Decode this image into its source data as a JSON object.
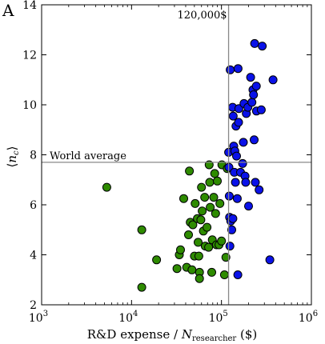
{
  "chart_data": {
    "type": "scatter",
    "panel_label": "A",
    "xlabel_main": "R&D expense /",
    "xlabel_symbol": "N",
    "xlabel_subscript": "researcher",
    "xlabel_unit": " ($)",
    "ylabel": "⟨n_c⟩",
    "ylabel_prefix": "⟨",
    "ylabel_symbol": "n",
    "ylabel_subscript": "c",
    "ylabel_suffix": "⟩",
    "x_scale": "log",
    "xlim": [
      1000,
      1000000
    ],
    "ylim": [
      2,
      14
    ],
    "x_ticks": [
      {
        "value": 1000,
        "base": "10",
        "exp": "3"
      },
      {
        "value": 10000,
        "base": "10",
        "exp": "4"
      },
      {
        "value": 100000,
        "base": "10",
        "exp": "5"
      },
      {
        "value": 1000000,
        "base": "10",
        "exp": "6"
      }
    ],
    "y_ticks": [
      2,
      4,
      6,
      8,
      10,
      12,
      14
    ],
    "grid": false,
    "reference_lines": [
      {
        "orientation": "vertical",
        "value": 120000,
        "label": "120,000$"
      },
      {
        "orientation": "horizontal",
        "value": 7.7,
        "label": "World average"
      }
    ],
    "series": [
      {
        "color": "#2e8b00",
        "points": [
          [
            5300,
            6.7
          ],
          [
            13000,
            2.7
          ],
          [
            13000,
            5.0
          ],
          [
            19000,
            3.8
          ],
          [
            32000,
            3.45
          ],
          [
            34000,
            4.0
          ],
          [
            35000,
            4.2
          ],
          [
            38000,
            6.25
          ],
          [
            41000,
            3.5
          ],
          [
            43000,
            4.8
          ],
          [
            44000,
            7.35
          ],
          [
            45000,
            5.3
          ],
          [
            47000,
            3.4
          ],
          [
            48000,
            5.2
          ],
          [
            50000,
            3.95
          ],
          [
            51000,
            6.05
          ],
          [
            54000,
            5.45
          ],
          [
            55000,
            4.5
          ],
          [
            56000,
            3.95
          ],
          [
            57000,
            3.3
          ],
          [
            57000,
            3.05
          ],
          [
            59000,
            5.4
          ],
          [
            60000,
            6.7
          ],
          [
            61000,
            5.75
          ],
          [
            63000,
            4.95
          ],
          [
            65000,
            6.3
          ],
          [
            66000,
            4.35
          ],
          [
            69000,
            5.1
          ],
          [
            72000,
            4.3
          ],
          [
            73000,
            7.6
          ],
          [
            74000,
            6.9
          ],
          [
            75000,
            5.9
          ],
          [
            78000,
            3.3
          ],
          [
            79000,
            4.6
          ],
          [
            82000,
            6.3
          ],
          [
            84000,
            7.25
          ],
          [
            86000,
            5.65
          ],
          [
            88000,
            4.4
          ],
          [
            90000,
            6.95
          ],
          [
            94000,
            4.4
          ],
          [
            96000,
            6.05
          ],
          [
            100000,
            4.55
          ],
          [
            101000,
            7.6
          ],
          [
            108000,
            3.2
          ],
          [
            112000,
            3.9
          ],
          [
            116000,
            7.45
          ]
        ]
      },
      {
        "color": "#0a12e8",
        "points": [
          [
            120000,
            8.1
          ],
          [
            121000,
            7.5
          ],
          [
            122000,
            6.35
          ],
          [
            123000,
            5.5
          ],
          [
            124000,
            4.35
          ],
          [
            125000,
            11.4
          ],
          [
            127000,
            5.35
          ],
          [
            130000,
            5.0
          ],
          [
            133000,
            9.9
          ],
          [
            134000,
            5.45
          ],
          [
            135000,
            9.55
          ],
          [
            137000,
            8.35
          ],
          [
            139000,
            7.3
          ],
          [
            141000,
            8.15
          ],
          [
            143000,
            6.9
          ],
          [
            145000,
            9.15
          ],
          [
            147000,
            7.95
          ],
          [
            150000,
            6.25
          ],
          [
            152000,
            3.2
          ],
          [
            153000,
            11.45
          ],
          [
            155000,
            9.3
          ],
          [
            156000,
            9.85
          ],
          [
            163000,
            7.3
          ],
          [
            172000,
            7.65
          ],
          [
            175000,
            8.5
          ],
          [
            178000,
            10.05
          ],
          [
            183000,
            7.15
          ],
          [
            186000,
            6.9
          ],
          [
            189000,
            9.65
          ],
          [
            197000,
            9.9
          ],
          [
            200000,
            5.95
          ],
          [
            211000,
            11.1
          ],
          [
            218000,
            10.1
          ],
          [
            224000,
            10.6
          ],
          [
            227000,
            10.4
          ],
          [
            231000,
            8.6
          ],
          [
            234000,
            12.45
          ],
          [
            238000,
            6.9
          ],
          [
            244000,
            10.75
          ],
          [
            245000,
            9.75
          ],
          [
            262000,
            6.6
          ],
          [
            277000,
            9.8
          ],
          [
            284000,
            12.35
          ],
          [
            345000,
            3.8
          ],
          [
            375000,
            11.0
          ]
        ]
      }
    ]
  }
}
